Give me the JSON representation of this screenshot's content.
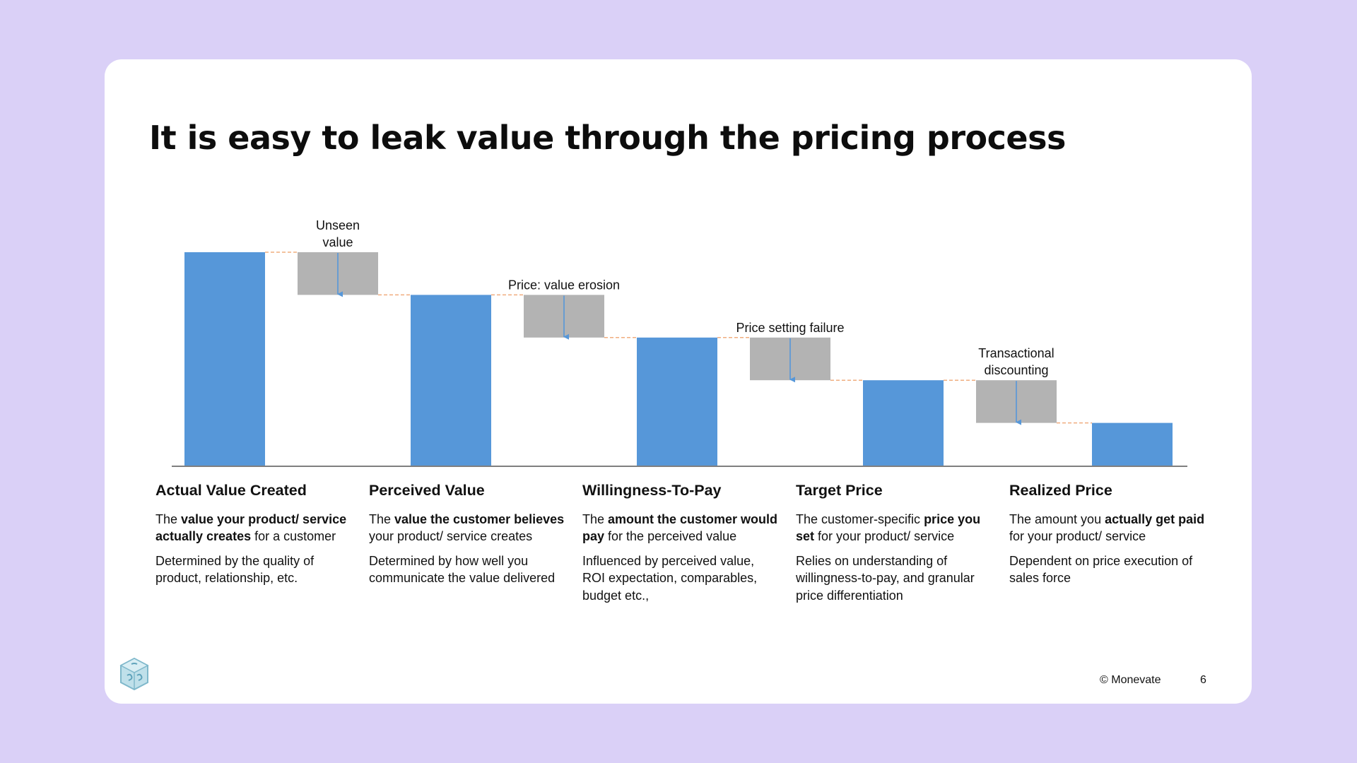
{
  "slide": {
    "title": "It is easy to leak value through the pricing process",
    "copyright": "© Monevate",
    "page_number": "6",
    "logo_icon": "cube-logo-icon"
  },
  "colors": {
    "background": "#dad0f7",
    "bar": "#5697d9",
    "leak": "#b3b3b3",
    "arrow": "#5697d9",
    "connector": "#f0ad7f",
    "axis": "#7f7f7f"
  },
  "chart_data": {
    "type": "bar",
    "subtype": "waterfall",
    "categories": [
      "Actual Value Created",
      "Perceived Value",
      "Willingness-To-Pay",
      "Target Price",
      "Realized Price"
    ],
    "values": [
      5,
      4,
      3,
      2,
      1
    ],
    "leaks": [
      {
        "label_lines": [
          "Unseen",
          "value"
        ],
        "from": 5,
        "to": 4
      },
      {
        "label_lines": [
          "Price: value erosion"
        ],
        "from": 4,
        "to": 3
      },
      {
        "label_lines": [
          "Price setting failure"
        ],
        "from": 3,
        "to": 2
      },
      {
        "label_lines": [
          "Transactional",
          "discounting"
        ],
        "from": 2,
        "to": 1
      }
    ],
    "ylim": [
      0,
      5
    ],
    "grid": false,
    "legend": "none"
  },
  "columns": [
    {
      "heading": "Actual Value Created",
      "paragraphs": [
        [
          {
            "t": "The "
          },
          {
            "t": "value your product/ service actually creates",
            "b": true
          },
          {
            "t": " for a customer"
          }
        ],
        [
          {
            "t": "Determined by the quality of product, relationship, etc."
          }
        ]
      ]
    },
    {
      "heading": "Perceived Value",
      "paragraphs": [
        [
          {
            "t": "The "
          },
          {
            "t": "value the customer believes",
            "b": true
          },
          {
            "t": " your product/ service creates"
          }
        ],
        [
          {
            "t": "Determined by how well you communicate the value delivered"
          }
        ]
      ]
    },
    {
      "heading": "Willingness-To-Pay",
      "paragraphs": [
        [
          {
            "t": "The "
          },
          {
            "t": "amount the customer would pay",
            "b": true
          },
          {
            "t": " for the perceived value"
          }
        ],
        [
          {
            "t": "Influenced by perceived value, ROI expectation, comparables, budget etc.,"
          }
        ]
      ]
    },
    {
      "heading": "Target Price",
      "paragraphs": [
        [
          {
            "t": "The customer-specific "
          },
          {
            "t": "price you set",
            "b": true
          },
          {
            "t": " for your product/ service"
          }
        ],
        [
          {
            "t": "Relies on understanding of willingness-to-pay, and granular price differentiation"
          }
        ]
      ]
    },
    {
      "heading": "Realized Price",
      "paragraphs": [
        [
          {
            "t": "The amount you "
          },
          {
            "t": "actually get paid",
            "b": true
          },
          {
            "t": " for your product/ service"
          }
        ],
        [
          {
            "t": "Dependent on price execution of sales force"
          }
        ]
      ]
    }
  ]
}
